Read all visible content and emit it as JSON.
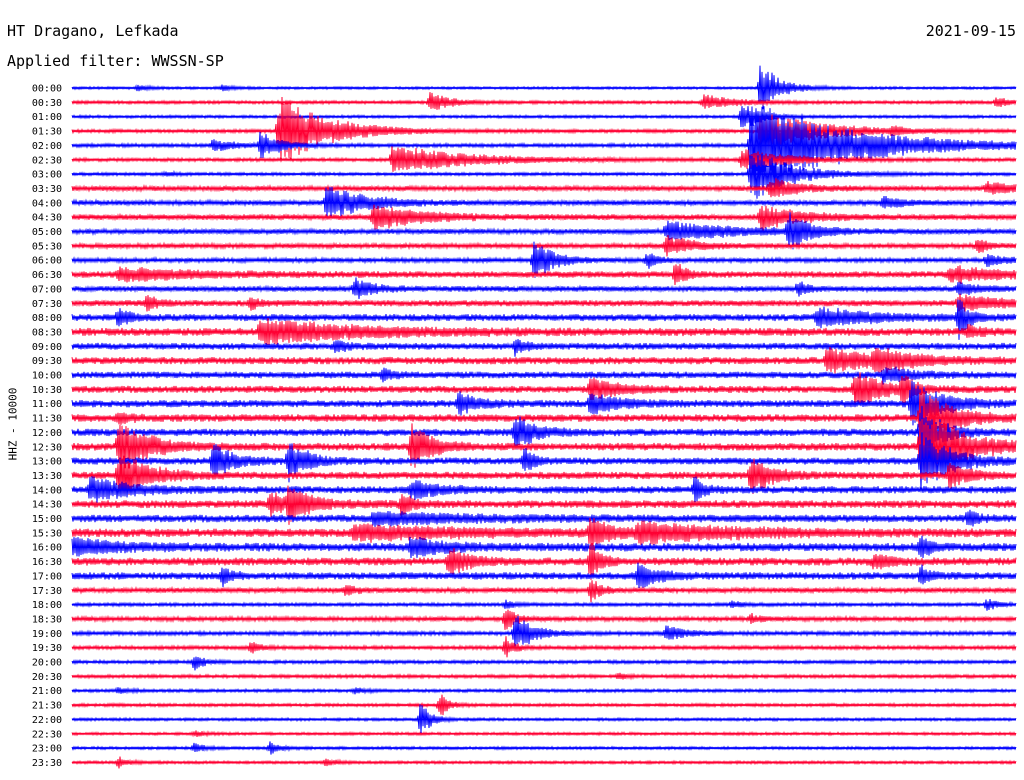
{
  "header": {
    "station": "HT Dragano, Lefkada",
    "filter": "Applied filter: WWSSN-SP",
    "date": "2021-09-15"
  },
  "chart_data": {
    "type": "line",
    "ylabel": "HHZ - 10000",
    "categories": [
      "00:00",
      "00:30",
      "01:00",
      "01:30",
      "02:00",
      "02:30",
      "03:00",
      "03:30",
      "04:00",
      "04:30",
      "05:00",
      "05:30",
      "06:00",
      "06:30",
      "07:00",
      "07:30",
      "08:00",
      "08:30",
      "09:00",
      "09:30",
      "10:00",
      "10:30",
      "11:00",
      "11:30",
      "12:00",
      "12:30",
      "13:00",
      "13:30",
      "14:00",
      "14:30",
      "15:00",
      "15:30",
      "16:00",
      "16:30",
      "17:00",
      "17:30",
      "18:00",
      "18:30",
      "19:00",
      "19:30",
      "20:00",
      "20:30",
      "21:00",
      "21:30",
      "22:00",
      "22:30",
      "23:00",
      "23:30"
    ],
    "colors": [
      "#0000ff",
      "#ff0033"
    ],
    "noise": [
      0.9,
      1.1,
      1.0,
      1.2,
      1.3,
      1.2,
      1.1,
      1.8,
      1.8,
      2.0,
      1.8,
      1.7,
      1.6,
      2.3,
      2.0,
      2.2,
      2.5,
      2.8,
      2.4,
      2.6,
      2.4,
      2.5,
      2.6,
      2.7,
      2.6,
      2.7,
      2.5,
      2.6,
      2.6,
      2.8,
      2.7,
      3.0,
      3.0,
      2.8,
      2.6,
      1.8,
      1.2,
      1.6,
      1.4,
      1.3,
      1.2,
      1.2,
      1.1,
      1.1,
      1.0,
      1.0,
      1.0,
      1.0
    ],
    "events": [
      [
        [
          0.07,
          3,
          0.01
        ],
        [
          0.16,
          3,
          0.01
        ],
        [
          0.73,
          26,
          0.02
        ]
      ],
      [
        [
          0.38,
          10,
          0.02
        ],
        [
          0.67,
          8,
          0.03
        ],
        [
          0.98,
          6,
          0.01
        ]
      ],
      [
        [
          0.71,
          14,
          0.02
        ]
      ],
      [
        [
          0.22,
          35,
          0.05
        ],
        [
          0.73,
          20,
          0.06
        ],
        [
          0.87,
          4,
          0.01
        ]
      ],
      [
        [
          0.15,
          6,
          0.02
        ],
        [
          0.2,
          14,
          0.02
        ],
        [
          0.72,
          45,
          0.1
        ]
      ],
      [
        [
          0.34,
          14,
          0.08
        ],
        [
          0.71,
          10,
          0.05
        ]
      ],
      [
        [
          0.72,
          28,
          0.04
        ],
        [
          0.1,
          2,
          0.01
        ]
      ],
      [
        [
          0.74,
          10,
          0.03
        ],
        [
          0.97,
          6,
          0.03
        ]
      ],
      [
        [
          0.27,
          18,
          0.04
        ],
        [
          0.86,
          6,
          0.02
        ]
      ],
      [
        [
          0.32,
          12,
          0.05
        ],
        [
          0.73,
          12,
          0.04
        ]
      ],
      [
        [
          0.63,
          9,
          0.08
        ],
        [
          0.76,
          20,
          0.02
        ]
      ],
      [
        [
          0.63,
          10,
          0.03
        ],
        [
          0.96,
          8,
          0.01
        ]
      ],
      [
        [
          0.49,
          20,
          0.02
        ],
        [
          0.61,
          8,
          0.01
        ],
        [
          0.97,
          6,
          0.02
        ]
      ],
      [
        [
          0.05,
          6,
          0.08
        ],
        [
          0.64,
          12,
          0.01
        ],
        [
          0.93,
          8,
          0.05
        ]
      ],
      [
        [
          0.3,
          10,
          0.02
        ],
        [
          0.77,
          8,
          0.01
        ],
        [
          0.94,
          6,
          0.02
        ]
      ],
      [
        [
          0.08,
          8,
          0.01
        ],
        [
          0.19,
          6,
          0.01
        ],
        [
          0.94,
          8,
          0.05
        ]
      ],
      [
        [
          0.05,
          10,
          0.01
        ],
        [
          0.79,
          10,
          0.05
        ],
        [
          0.94,
          20,
          0.01
        ]
      ],
      [
        [
          0.2,
          12,
          0.1
        ],
        [
          0.95,
          6,
          0.01
        ]
      ],
      [
        [
          0.28,
          8,
          0.01
        ],
        [
          0.47,
          8,
          0.01
        ]
      ],
      [
        [
          0.8,
          12,
          0.06
        ],
        [
          0.85,
          10,
          0.03
        ]
      ],
      [
        [
          0.33,
          6,
          0.01
        ],
        [
          0.86,
          8,
          0.03
        ]
      ],
      [
        [
          0.55,
          10,
          0.03
        ],
        [
          0.83,
          18,
          0.03
        ],
        [
          0.88,
          15,
          0.01
        ]
      ],
      [
        [
          0.41,
          10,
          0.02
        ],
        [
          0.55,
          10,
          0.03
        ],
        [
          0.89,
          25,
          0.03
        ]
      ],
      [
        [
          0.05,
          6,
          0.01
        ],
        [
          0.9,
          30,
          0.03
        ]
      ],
      [
        [
          0.47,
          18,
          0.02
        ],
        [
          0.9,
          28,
          0.02
        ]
      ],
      [
        [
          0.05,
          28,
          0.03
        ],
        [
          0.36,
          22,
          0.02
        ],
        [
          0.9,
          40,
          0.04
        ]
      ],
      [
        [
          0.15,
          18,
          0.02
        ],
        [
          0.23,
          20,
          0.02
        ],
        [
          0.48,
          12,
          0.01
        ],
        [
          0.9,
          30,
          0.03
        ]
      ],
      [
        [
          0.05,
          24,
          0.03
        ],
        [
          0.72,
          20,
          0.02
        ],
        [
          0.93,
          12,
          0.02
        ]
      ],
      [
        [
          0.02,
          12,
          0.04
        ],
        [
          0.36,
          8,
          0.03
        ],
        [
          0.66,
          12,
          0.01
        ]
      ],
      [
        [
          0.21,
          10,
          0.03
        ],
        [
          0.23,
          15,
          0.02
        ],
        [
          0.35,
          12,
          0.01
        ]
      ],
      [
        [
          0.95,
          8,
          0.01
        ],
        [
          0.32,
          6,
          0.1
        ]
      ],
      [
        [
          0.55,
          15,
          0.02
        ],
        [
          0.3,
          8,
          0.1
        ],
        [
          0.6,
          10,
          0.1
        ]
      ],
      [
        [
          0.0,
          8,
          0.05
        ],
        [
          0.36,
          10,
          0.03
        ],
        [
          0.9,
          10,
          0.01
        ]
      ],
      [
        [
          0.4,
          14,
          0.02
        ],
        [
          0.55,
          20,
          0.01
        ],
        [
          0.85,
          6,
          0.02
        ]
      ],
      [
        [
          0.16,
          8,
          0.01
        ],
        [
          0.6,
          12,
          0.02
        ],
        [
          0.9,
          8,
          0.01
        ]
      ],
      [
        [
          0.29,
          6,
          0.01
        ],
        [
          0.55,
          12,
          0.01
        ]
      ],
      [
        [
          0.46,
          4,
          0.01
        ],
        [
          0.7,
          4,
          0.01
        ],
        [
          0.97,
          6,
          0.01
        ]
      ],
      [
        [
          0.46,
          12,
          0.01
        ],
        [
          0.72,
          4,
          0.01
        ]
      ],
      [
        [
          0.47,
          18,
          0.02
        ],
        [
          0.63,
          8,
          0.02
        ]
      ],
      [
        [
          0.19,
          6,
          0.01
        ],
        [
          0.46,
          10,
          0.01
        ]
      ],
      [
        [
          0.13,
          8,
          0.01
        ]
      ],
      [
        [
          0.58,
          3,
          0.01
        ]
      ],
      [
        [
          0.05,
          3,
          0.01
        ],
        [
          0.3,
          3,
          0.01
        ]
      ],
      [
        [
          0.39,
          12,
          0.01
        ]
      ],
      [
        [
          0.37,
          18,
          0.01
        ]
      ],
      [
        [
          0.13,
          3,
          0.01
        ]
      ],
      [
        [
          0.13,
          5,
          0.01
        ],
        [
          0.21,
          6,
          0.01
        ]
      ],
      [
        [
          0.05,
          5,
          0.01
        ],
        [
          0.27,
          4,
          0.01
        ]
      ]
    ]
  }
}
